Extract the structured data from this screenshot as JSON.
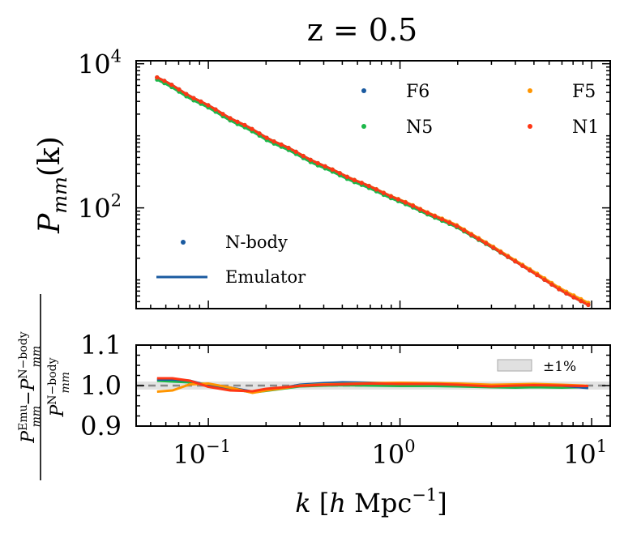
{
  "title": "z = 0.5",
  "chart_data": [
    {
      "type": "line",
      "panel": "top",
      "ylabel_parts": {
        "base": "P",
        "sub": "mm",
        "arg": "(k)"
      },
      "xscale": "log",
      "yscale": "log",
      "xlim": [
        0.042,
        12.5
      ],
      "ylim": [
        4,
        11000
      ],
      "y_ticks": [
        {
          "base": "10",
          "exp": "4",
          "value": 10000
        },
        {
          "base": "10",
          "exp": "2",
          "value": 100
        }
      ],
      "series": [
        {
          "name": "F6",
          "color": "#1a5aa0",
          "power_ratio": 1.0
        },
        {
          "name": "F5",
          "color": "#ff9500",
          "power_ratio": 1.03
        },
        {
          "name": "N5",
          "color": "#1cb84a",
          "power_ratio": 0.925
        },
        {
          "name": "N1",
          "color": "#ff3614",
          "power_ratio": 1.0
        }
      ],
      "reference_spectrum": {
        "x": [
          0.054,
          0.1,
          0.2,
          0.4,
          0.7,
          1.0,
          2.0,
          3.0,
          5.0,
          7.0,
          9.6
        ],
        "y": [
          6500,
          2600,
          960,
          380,
          195,
          128,
          55,
          29,
          12.5,
          7.0,
          4.5
        ]
      },
      "legend_series": {
        "position": "upper-right",
        "columns": 2
      },
      "legend_style": {
        "position": "lower-left",
        "entries": [
          {
            "label": "N-body",
            "marker": "dot"
          },
          {
            "label": "Emulator",
            "marker": "line"
          }
        ]
      }
    },
    {
      "type": "line",
      "panel": "bottom",
      "ylabel_parts": {
        "emu": "Emu",
        "nbody": "N−body",
        "mm": "mm",
        "minus": "−"
      },
      "xlabel_parts": {
        "k": "k",
        "h": "h",
        "unit": "Mpc",
        "exp": "−1"
      },
      "xscale": "log",
      "xlim": [
        0.042,
        12.5
      ],
      "ylim": [
        0.9,
        1.1
      ],
      "y_ticks": [
        "1.1",
        "1.0",
        "0.9"
      ],
      "x_ticks": [
        {
          "base": "10",
          "exp": "−1",
          "value": 0.1
        },
        {
          "base": "10",
          "exp": "0",
          "value": 1
        },
        {
          "base": "10",
          "exp": "1",
          "value": 10
        }
      ],
      "band": {
        "label": "±1%",
        "lower": 0.99,
        "upper": 1.01
      },
      "reference_line": 1.0,
      "x": [
        0.054,
        0.065,
        0.08,
        0.1,
        0.13,
        0.17,
        0.2,
        0.25,
        0.3,
        0.4,
        0.5,
        0.7,
        1.0,
        1.5,
        2.0,
        3.0,
        4.0,
        5.0,
        7.0,
        9.0,
        9.6
      ],
      "series": [
        {
          "name": "F6",
          "values": [
            1.015,
            1.015,
            1.012,
            1.0,
            0.995,
            0.985,
            0.99,
            0.995,
            1.002,
            1.006,
            1.008,
            1.007,
            1.005,
            1.006,
            1.004,
            1.0,
            1.002,
            1.003,
            1.0,
            0.995,
            0.994
          ]
        },
        {
          "name": "F5",
          "values": [
            0.985,
            0.988,
            1.003,
            1.005,
            0.995,
            0.982,
            0.988,
            0.994,
            1.0,
            1.003,
            1.004,
            1.006,
            1.007,
            1.006,
            1.005,
            1.002,
            1.003,
            1.004,
            1.002,
            1.0,
            0.999
          ]
        },
        {
          "name": "N5",
          "values": [
            1.012,
            1.01,
            1.008,
            1.003,
            0.993,
            0.983,
            0.987,
            0.993,
            0.998,
            1.0,
            1.001,
            1.0,
            0.999,
            0.999,
            0.998,
            0.996,
            0.995,
            0.996,
            0.995,
            0.996,
            0.996
          ]
        },
        {
          "name": "N1",
          "values": [
            1.018,
            1.018,
            1.012,
            0.997,
            0.988,
            0.986,
            0.992,
            0.996,
            0.999,
            1.002,
            1.003,
            1.005,
            1.004,
            1.004,
            1.002,
            0.998,
            1.0,
            1.001,
            1.0,
            0.999,
            0.999
          ]
        }
      ]
    }
  ]
}
